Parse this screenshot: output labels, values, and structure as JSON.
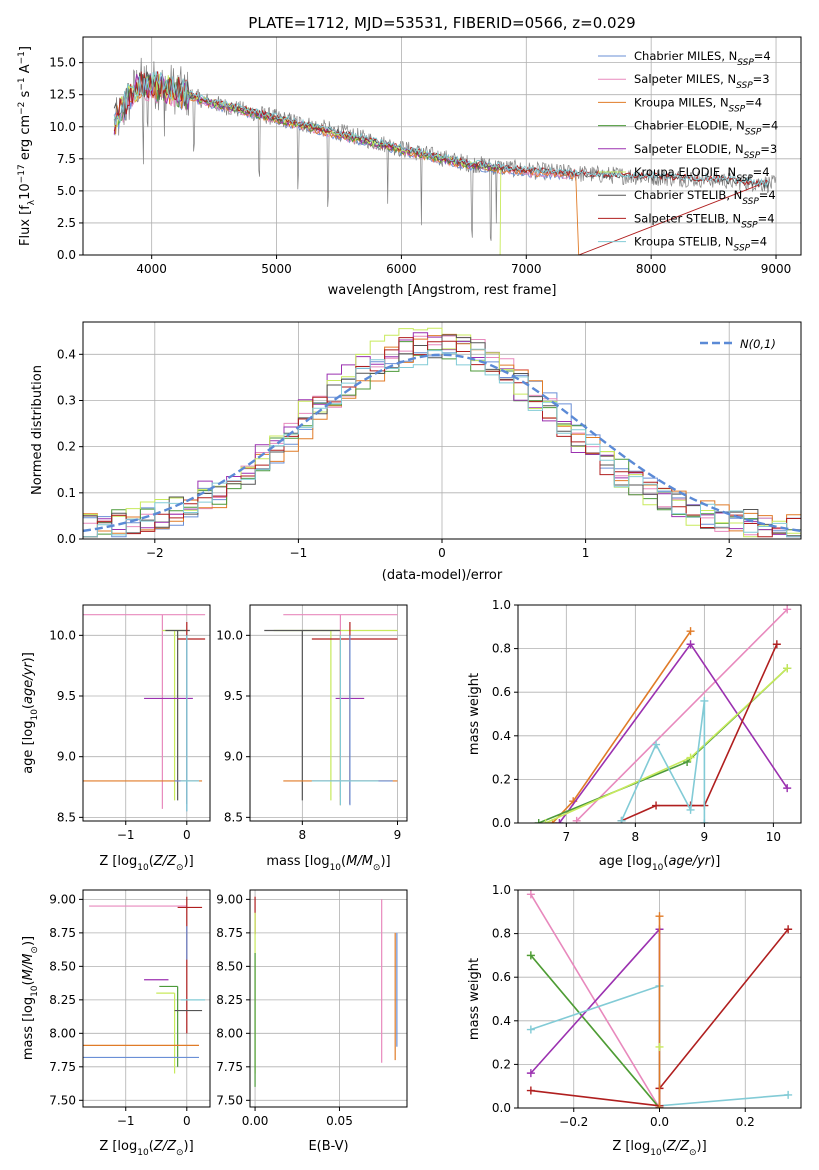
{
  "colors": {
    "Chabrier MILES": "#6a8fd6",
    "Salpeter MILES": "#e889bd",
    "Kroupa MILES": "#e07b27",
    "Chabrier ELODIE": "#4c9a3a",
    "Salpeter ELODIE": "#9b31b0",
    "Kroupa ELODIE": "#c8ea5c",
    "Chabrier STELIB": "#555555",
    "Salpeter STELIB": "#b01f1f",
    "Kroupa STELIB": "#82cbd6",
    "normal": "#5b8ad6"
  },
  "chart_data": [
    {
      "id": "spectrum",
      "type": "line",
      "title": "PLATE=1712, MJD=53531, FIBERID=0566, z=0.029",
      "xlabel": "wavelength [Angstrom, rest frame]",
      "ylabel": "Flux [f_λ10^-17 erg cm^-2 s^-1 A^-1]",
      "xlim": [
        3450,
        9200
      ],
      "ylim": [
        0,
        17
      ],
      "xticks": [
        4000,
        5000,
        6000,
        7000,
        8000,
        9000
      ],
      "yticks": [
        0.0,
        2.5,
        5.0,
        7.5,
        10.0,
        12.5,
        15.0
      ],
      "legend_position": "top-right",
      "legend": [
        {
          "name": "Chabrier MILES",
          "nssp": "4"
        },
        {
          "name": "Salpeter MILES",
          "nssp": "3"
        },
        {
          "name": "Kroupa MILES",
          "nssp": "4"
        },
        {
          "name": "Chabrier ELODIE",
          "nssp": "4"
        },
        {
          "name": "Salpeter ELODIE",
          "nssp": "3"
        },
        {
          "name": "Kroupa ELODIE",
          "nssp": "4"
        },
        {
          "name": "Chabrier STELIB",
          "nssp": "4"
        },
        {
          "name": "Salpeter STELIB",
          "nssp": "4"
        },
        {
          "name": "Kroupa STELIB",
          "nssp": "4"
        }
      ],
      "data_curve": {
        "x": [
          3700,
          3900,
          4100,
          4500,
          5000,
          5500,
          6000,
          6500,
          7000,
          7500,
          8000,
          8500,
          9000
        ],
        "y": [
          10.0,
          13.5,
          13.2,
          11.8,
          10.7,
          9.6,
          8.3,
          7.2,
          6.6,
          6.3,
          6.1,
          5.9,
          5.5
        ]
      },
      "model_curve": {
        "x": [
          3700,
          3900,
          4100,
          4500,
          5000,
          5500,
          6000,
          6500,
          7000,
          7500,
          8000,
          8500,
          8950
        ],
        "y": [
          10.5,
          13.3,
          13.0,
          11.8,
          10.6,
          9.4,
          8.2,
          7.1,
          6.5,
          6.2,
          6.0,
          5.8,
          5.4
        ]
      },
      "series_ranges": {
        "Chabrier MILES": [
          3700,
          7400
        ],
        "Salpeter MILES": [
          3700,
          7400
        ],
        "Kroupa MILES": [
          3700,
          7400
        ],
        "Chabrier ELODIE": [
          3700,
          6800
        ],
        "Salpeter ELODIE": [
          3700,
          6800
        ],
        "Kroupa ELODIE": [
          3700,
          6800
        ],
        "Chabrier STELIB": [
          3700,
          8950
        ],
        "Salpeter STELIB": [
          3700,
          8950
        ],
        "Kroupa STELIB": [
          3700,
          8950
        ]
      },
      "dropoffs": {
        "Kroupa MILES": 7420,
        "Salpeter STELIB": 7420,
        "Kroupa ELODIE": 6790
      },
      "absorption_lines": [
        3933,
        3969,
        4102,
        4340,
        4861,
        5175,
        5412,
        5890,
        6160,
        6563,
        6717,
        6760
      ]
    },
    {
      "id": "residuals",
      "type": "step",
      "xlabel": "(data-model)/error",
      "ylabel": "Normed distribution",
      "xlim": [
        -2.5,
        2.5
      ],
      "ylim": [
        0,
        0.47
      ],
      "xticks": [
        -2,
        -1,
        0,
        1,
        2
      ],
      "yticks": [
        0.0,
        0.1,
        0.2,
        0.3,
        0.4
      ],
      "legend_position": "top-right",
      "normal_label": "N(0,1)",
      "bin_width": 0.1,
      "series_amp": {
        "Chabrier MILES": 0.405,
        "Salpeter MILES": 0.41,
        "Kroupa MILES": 0.4,
        "Chabrier ELODIE": 0.395,
        "Salpeter ELODIE": 0.415,
        "Kroupa ELODIE": 0.42,
        "Chabrier STELIB": 0.4,
        "Salpeter STELIB": 0.405,
        "Kroupa STELIB": 0.39
      },
      "series_center": {
        "Chabrier MILES": 0.0,
        "Salpeter MILES": -0.05,
        "Kroupa MILES": 0.0,
        "Chabrier ELODIE": -0.05,
        "Salpeter ELODIE": -0.1,
        "Kroupa ELODIE": -0.1,
        "Chabrier STELIB": -0.05,
        "Salpeter STELIB": -0.05,
        "Kroupa STELIB": -0.05
      },
      "sigma": 0.85
    },
    {
      "id": "age-vs-Z",
      "type": "errorbar",
      "xlabel": "Z [log10(Z/Z⊙)]",
      "ylabel": "age [log10(age/yr)]",
      "xlim": [
        -1.7,
        0.38
      ],
      "ylim": [
        8.47,
        10.25
      ],
      "xticks": [
        -1,
        0
      ],
      "yticks": [
        8.5,
        9.0,
        9.5,
        10.0
      ],
      "points": [
        {
          "series": "Salpeter MILES",
          "x": -0.4,
          "y": 10.17,
          "xerr": [
            1.55,
            0.7
          ],
          "yerr": [
            1.6,
            0
          ]
        },
        {
          "series": "Kroupa ELODIE",
          "x": -0.2,
          "y": 10.04,
          "xerr": [
            0.2,
            0.2
          ],
          "yerr": [
            1.4,
            0
          ]
        },
        {
          "series": "Chabrier STELIB",
          "x": -0.15,
          "y": 10.04,
          "xerr": [
            0.2,
            0.2
          ],
          "yerr": [
            1.4,
            0
          ]
        },
        {
          "series": "Salpeter STELIB",
          "x": 0.0,
          "y": 9.97,
          "xerr": [
            0.15,
            0.3
          ],
          "yerr": [
            1.36,
            0.14
          ]
        },
        {
          "series": "Salpeter ELODIE",
          "x": -0.3,
          "y": 9.48,
          "xerr": [
            0.4,
            0.4
          ],
          "yerr": [
            0,
            0
          ]
        },
        {
          "series": "Kroupa MILES",
          "x": -0.7,
          "y": 8.8,
          "xerr": [
            1.0,
            0.95
          ],
          "yerr": [
            0,
            0
          ]
        },
        {
          "series": "Chabrier MILES",
          "x": 0.0,
          "y": 8.8,
          "xerr": [
            0.2,
            0.2
          ],
          "yerr": [
            0.25,
            1.2
          ]
        },
        {
          "series": "Kroupa STELIB",
          "x": 0.0,
          "y": 8.8,
          "xerr": [
            0.1,
            0.2
          ],
          "yerr": [
            0.25,
            1.2
          ]
        }
      ]
    },
    {
      "id": "age-vs-mass",
      "type": "errorbar",
      "xlabel": "mass [log10(M/M⊙)]",
      "ylabel": "",
      "xlim": [
        7.45,
        9.1
      ],
      "ylim": [
        8.47,
        10.25
      ],
      "xticks": [
        8,
        9
      ],
      "yticks": [
        8.5,
        9.0,
        9.5,
        10.0
      ],
      "points": [
        {
          "series": "Salpeter MILES",
          "x": 8.4,
          "y": 10.17,
          "xerr": [
            0.6,
            0.6
          ],
          "yerr": [
            1.5,
            0
          ]
        },
        {
          "series": "Kroupa ELODIE",
          "x": 8.3,
          "y": 10.04,
          "xerr": [
            0.6,
            0.7
          ],
          "yerr": [
            1.4,
            0
          ]
        },
        {
          "series": "Chabrier STELIB",
          "x": 8.0,
          "y": 10.04,
          "xerr": [
            0.4,
            0.4
          ],
          "yerr": [
            1.4,
            0
          ]
        },
        {
          "series": "Salpeter STELIB",
          "x": 8.5,
          "y": 9.97,
          "xerr": [
            0.4,
            0.5
          ],
          "yerr": [
            1.36,
            0.14
          ]
        },
        {
          "series": "Salpeter ELODIE",
          "x": 8.4,
          "y": 9.48,
          "xerr": [
            0.05,
            0.25
          ],
          "yerr": [
            0,
            0
          ]
        },
        {
          "series": "Kroupa MILES",
          "x": 8.4,
          "y": 8.8,
          "xerr": [
            0.6,
            0.6
          ],
          "yerr": [
            0.2,
            1.2
          ]
        },
        {
          "series": "Chabrier MILES",
          "x": 8.5,
          "y": 8.8,
          "xerr": [
            0.4,
            0.45
          ],
          "yerr": [
            0.2,
            1.2
          ]
        },
        {
          "series": "Kroupa STELIB",
          "x": 8.4,
          "y": 8.8,
          "xerr": [
            0.3,
            0.4
          ],
          "yerr": [
            0.2,
            1.2
          ]
        }
      ]
    },
    {
      "id": "weight-vs-age",
      "type": "line",
      "xlabel": "age [log10(age/yr)]",
      "ylabel": "mass weight",
      "xlim": [
        6.3,
        10.4
      ],
      "ylim": [
        0,
        1
      ],
      "xticks": [
        7,
        8,
        9,
        10
      ],
      "yticks": [
        0.0,
        0.2,
        0.4,
        0.6,
        0.8,
        1.0
      ],
      "series": [
        {
          "name": "Kroupa MILES",
          "x": [
            6.8,
            7.1,
            8.8
          ],
          "y": [
            0.0,
            0.1,
            0.88
          ]
        },
        {
          "name": "Salpeter MILES",
          "x": [
            7.15,
            10.2
          ],
          "y": [
            0.01,
            0.98
          ]
        },
        {
          "name": "Salpeter ELODIE",
          "x": [
            6.9,
            8.8,
            10.2
          ],
          "y": [
            0.0,
            0.82,
            0.16
          ]
        },
        {
          "name": "Chabrier ELODIE",
          "x": [
            6.6,
            8.75,
            10.2
          ],
          "y": [
            0.0,
            0.28,
            0.71
          ]
        },
        {
          "name": "Kroupa ELODIE",
          "x": [
            6.7,
            8.8,
            10.2
          ],
          "y": [
            0.0,
            0.3,
            0.71
          ]
        },
        {
          "name": "Salpeter STELIB",
          "x": [
            7.8,
            8.3,
            8.8,
            9.0,
            10.05
          ],
          "y": [
            0.01,
            0.08,
            0.08,
            0.08,
            0.82
          ]
        },
        {
          "name": "Kroupa STELIB",
          "x": [
            7.8,
            8.3,
            8.8,
            9.0,
            9.0
          ],
          "y": [
            0.01,
            0.36,
            0.06,
            0.56,
            0.0
          ]
        }
      ]
    },
    {
      "id": "mass-vs-Z",
      "type": "errorbar",
      "xlabel": "Z [log10(Z/Z⊙)]",
      "ylabel": "mass [log10(M/M⊙)]",
      "xlim": [
        -1.7,
        0.38
      ],
      "ylim": [
        7.45,
        9.07
      ],
      "xticks": [
        -1,
        0
      ],
      "yticks": [
        7.5,
        7.75,
        8.0,
        8.25,
        8.5,
        8.75,
        9.0
      ],
      "points": [
        {
          "series": "Salpeter MILES",
          "x": -0.6,
          "y": 8.95,
          "xerr": [
            1.0,
            0.6
          ],
          "yerr": [
            0,
            0
          ]
        },
        {
          "series": "Salpeter STELIB",
          "x": 0.0,
          "y": 8.94,
          "xerr": [
            0.15,
            0.25
          ],
          "yerr": [
            0.94,
            0.08
          ]
        },
        {
          "series": "Chabrier MILES",
          "x": 0.0,
          "y": 8.7,
          "xerr": [
            0,
            0
          ],
          "yerr": [
            0.15,
            0.1
          ]
        },
        {
          "series": "Salpeter ELODIE",
          "x": -0.3,
          "y": 8.4,
          "xerr": [
            0.4,
            0.0
          ],
          "yerr": [
            0,
            0
          ]
        },
        {
          "series": "Chabrier ELODIE",
          "x": -0.15,
          "y": 8.35,
          "xerr": [
            0.3,
            0.0
          ],
          "yerr": [
            0.6,
            0.0
          ]
        },
        {
          "series": "Kroupa ELODIE",
          "x": -0.2,
          "y": 8.3,
          "xerr": [
            0.3,
            0.0
          ],
          "yerr": [
            0.6,
            0.0
          ]
        },
        {
          "series": "Kroupa STELIB",
          "x": 0.0,
          "y": 8.25,
          "xerr": [
            0.1,
            0.3
          ],
          "yerr": [
            0,
            0
          ]
        },
        {
          "series": "Chabrier STELIB",
          "x": 0.0,
          "y": 8.17,
          "xerr": [
            0.2,
            0.25
          ],
          "yerr": [
            0,
            0
          ]
        },
        {
          "series": "Kroupa MILES",
          "x": -0.7,
          "y": 7.91,
          "xerr": [
            1.0,
            0.9
          ],
          "yerr": [
            0,
            0
          ]
        },
        {
          "series": "Chabrier MILES",
          "x": -0.7,
          "y": 7.82,
          "xerr": [
            1.0,
            0.9
          ],
          "yerr": [
            0,
            0
          ]
        }
      ]
    },
    {
      "id": "mass-vs-EBV",
      "type": "errorbar",
      "xlabel": "E(B-V)",
      "ylabel": "",
      "xlim": [
        -0.003,
        0.09
      ],
      "ylim": [
        7.45,
        9.07
      ],
      "xticks": [
        0.0,
        0.05
      ],
      "yticks": [
        7.5,
        7.75,
        8.0,
        8.25,
        8.5,
        8.75,
        9.0
      ],
      "points": [
        {
          "series": "Salpeter STELIB",
          "x": 0.0,
          "y": 8.94,
          "xerr": [
            0,
            0
          ],
          "yerr": [
            0.2,
            0.08
          ]
        },
        {
          "series": "Kroupa ELODIE",
          "x": 0.0,
          "y": 8.3,
          "xerr": [
            0,
            0
          ],
          "yerr": [
            0.6,
            0.6
          ]
        },
        {
          "series": "Chabrier ELODIE",
          "x": 0.0,
          "y": 8.3,
          "xerr": [
            0,
            0
          ],
          "yerr": [
            0.7,
            0.3
          ]
        },
        {
          "series": "Salpeter MILES",
          "x": 0.075,
          "y": 8.4,
          "xerr": [
            0,
            0
          ],
          "yerr": [
            0.62,
            0.6
          ]
        },
        {
          "series": "Kroupa MILES",
          "x": 0.083,
          "y": 8.3,
          "xerr": [
            0,
            0
          ],
          "yerr": [
            0.5,
            0.45
          ]
        },
        {
          "series": "Chabrier MILES",
          "x": 0.084,
          "y": 8.3,
          "xerr": [
            0,
            0
          ],
          "yerr": [
            0.4,
            0.45
          ]
        }
      ]
    },
    {
      "id": "weight-vs-Z",
      "type": "line",
      "xlabel": "Z [log10(Z/Z⊙)]",
      "ylabel": "mass weight",
      "xlim": [
        -0.33,
        0.33
      ],
      "ylim": [
        0,
        1
      ],
      "xticks": [
        -0.2,
        0.0,
        0.2
      ],
      "yticks": [
        0.0,
        0.2,
        0.4,
        0.6,
        0.8,
        1.0
      ],
      "series": [
        {
          "name": "Salpeter MILES",
          "x": [
            -0.3,
            0.0
          ],
          "y": [
            0.98,
            0.0
          ]
        },
        {
          "name": "Kroupa ELODIE",
          "x": [
            -0.3,
            0.0
          ],
          "y": [
            0.7,
            0.0
          ]
        },
        {
          "name": "Chabrier ELODIE",
          "x": [
            -0.3,
            0.0
          ],
          "y": [
            0.7,
            0.0
          ]
        },
        {
          "name": "Salpeter ELODIE",
          "x": [
            -0.3,
            0.0,
            0.0
          ],
          "y": [
            0.16,
            0.82,
            0.0
          ]
        },
        {
          "name": "Kroupa STELIB",
          "x": [
            -0.3,
            0.0,
            0.0,
            0.3
          ],
          "y": [
            0.36,
            0.56,
            0.01,
            0.06
          ]
        },
        {
          "name": "Salpeter STELIB",
          "x": [
            -0.3,
            0.0,
            0.0,
            0.3
          ],
          "y": [
            0.08,
            0.01,
            0.09,
            0.82
          ]
        },
        {
          "name": "Kroupa MILES",
          "x": [
            0.0,
            0.0
          ],
          "y": [
            0.88,
            0.0
          ]
        },
        {
          "name": "Kroupa ELODIE",
          "x": [
            0.0
          ],
          "y": [
            0.28
          ]
        }
      ]
    }
  ]
}
